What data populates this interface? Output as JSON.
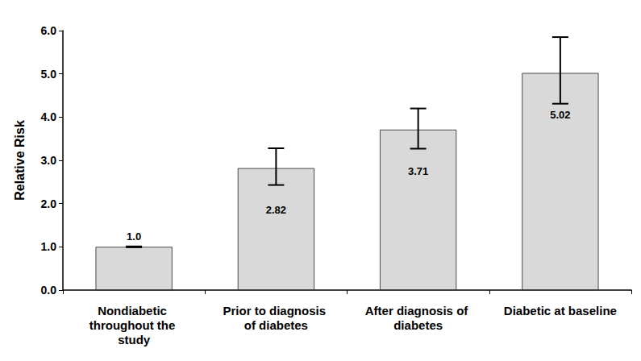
{
  "chart_data": {
    "type": "bar",
    "y_label": "Relative Risk",
    "categories": [
      "Nondiabetic throughout the study",
      "Prior to diagnosis of diabetes",
      "After diagnosis of diabetes",
      "Diabetic at baseline"
    ],
    "values": [
      1.0,
      2.82,
      3.71,
      5.02
    ],
    "value_labels": [
      "1.0",
      "2.82",
      "3.71",
      "5.02"
    ],
    "error_low": [
      0.99,
      2.43,
      3.27,
      4.31
    ],
    "error_high": [
      1.01,
      3.28,
      4.2,
      5.85
    ],
    "color": "#d9d9d9",
    "data_labels": true,
    "ylim": [
      0,
      6
    ],
    "yticks": [
      {
        "value": 0,
        "label": "0.0"
      },
      {
        "value": 1,
        "label": "1.0"
      },
      {
        "value": 2,
        "label": "2.0"
      },
      {
        "value": 3,
        "label": "3.0"
      },
      {
        "value": 4,
        "label": "4.0"
      },
      {
        "value": 5,
        "label": "5.0"
      },
      {
        "value": 6,
        "label": "6.0"
      }
    ],
    "grid": false
  }
}
